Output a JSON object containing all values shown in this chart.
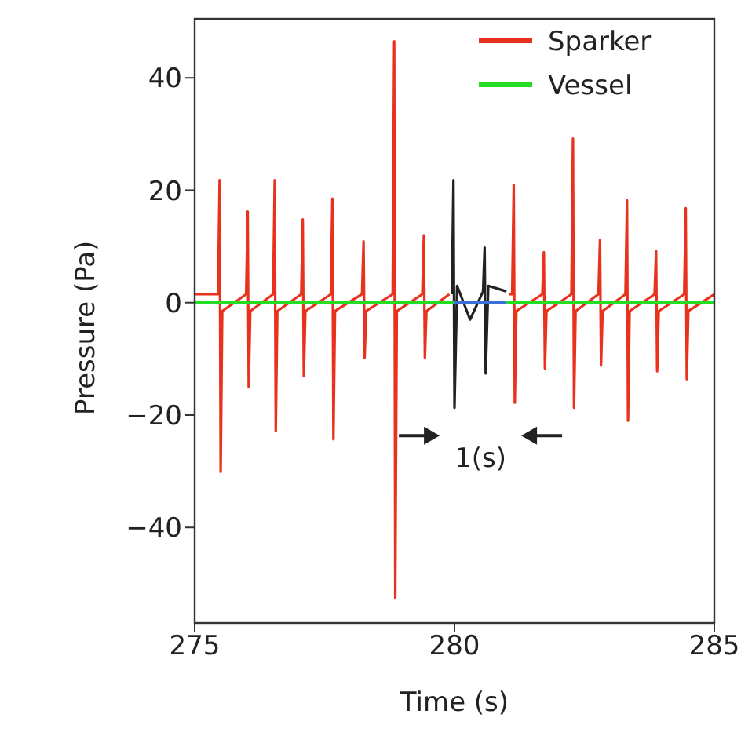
{
  "chart_data": {
    "type": "line",
    "xlabel": "Time (s)",
    "ylabel": "Pressure (Pa)",
    "xlim": [
      275,
      285
    ],
    "xticks": [
      275,
      280,
      285
    ],
    "ylim": [
      -57,
      50.5
    ],
    "yticks": [
      {
        "value": -40,
        "label": "−40"
      },
      {
        "value": -20,
        "label": "−20"
      },
      0,
      20,
      40
    ],
    "legend": "top right",
    "annotations": [
      "1(s)"
    ],
    "series": [
      {
        "name": "Sparker",
        "color": "#e8321e",
        "x": [
          275,
          275.45,
          275.48,
          275.5,
          275.53,
          275.99,
          276.02,
          276.04,
          276.07,
          276.51,
          276.54,
          276.56,
          276.59,
          277.05,
          277.08,
          277.1,
          277.13,
          277.62,
          277.65,
          277.67,
          277.7,
          278.22,
          278.25,
          278.27,
          278.3,
          278.81,
          278.84,
          278.86,
          278.89,
          279.38,
          279.41,
          279.43,
          279.46,
          279.9,
          280.5,
          281.05,
          281.11,
          281.14,
          281.16,
          281.19,
          281.69,
          281.72,
          281.74,
          281.77,
          282.25,
          282.28,
          282.3,
          282.33,
          282.77,
          282.8,
          282.82,
          282.85,
          283.29,
          283.32,
          283.34,
          283.37,
          283.85,
          283.88,
          283.9,
          283.93,
          284.42,
          284.45,
          284.47,
          284.5,
          285
        ],
        "values": [
          1.5,
          1.5,
          21.8,
          -30.1,
          -1.5,
          1.5,
          16.2,
          -15,
          -1.5,
          1.5,
          21.8,
          -22.9,
          -1.5,
          1.5,
          14.8,
          -13.1,
          -1.5,
          1.5,
          18.5,
          -24.3,
          -1.5,
          1.5,
          10.9,
          -9.8,
          -1.5,
          1.5,
          46.5,
          -52.5,
          -1.5,
          1.5,
          12,
          -9.8,
          -1.5,
          1.5,
          null,
          1.5,
          1.5,
          21,
          -17.8,
          -1.5,
          1.5,
          9,
          -11.7,
          -1.5,
          1.5,
          29.2,
          -18.7,
          -1.5,
          1.5,
          11.2,
          -11.2,
          -1.5,
          1.5,
          18.2,
          -21,
          -1.5,
          1.5,
          9.2,
          -12.2,
          -1.5,
          1.5,
          16.8,
          -13.6,
          -1.5,
          1.5
        ]
      },
      {
        "color": "#222222",
        "x": [
          279.95,
          279.98,
          280,
          280.05,
          280.3,
          280.55,
          280.58,
          280.6,
          280.65,
          281
        ],
        "values": [
          1.5,
          21.8,
          -18.7,
          3,
          -3,
          2,
          9.8,
          -12.6,
          3,
          2
        ]
      },
      {
        "name": "Vessel",
        "color": "#22dd22",
        "x": [
          275,
          280,
          280.5,
          281,
          285
        ],
        "values": [
          0,
          0,
          null,
          0,
          0
        ]
      },
      {
        "color": "#3a6fd8",
        "x": [
          280,
          281
        ],
        "values": [
          0,
          0
        ]
      }
    ]
  }
}
